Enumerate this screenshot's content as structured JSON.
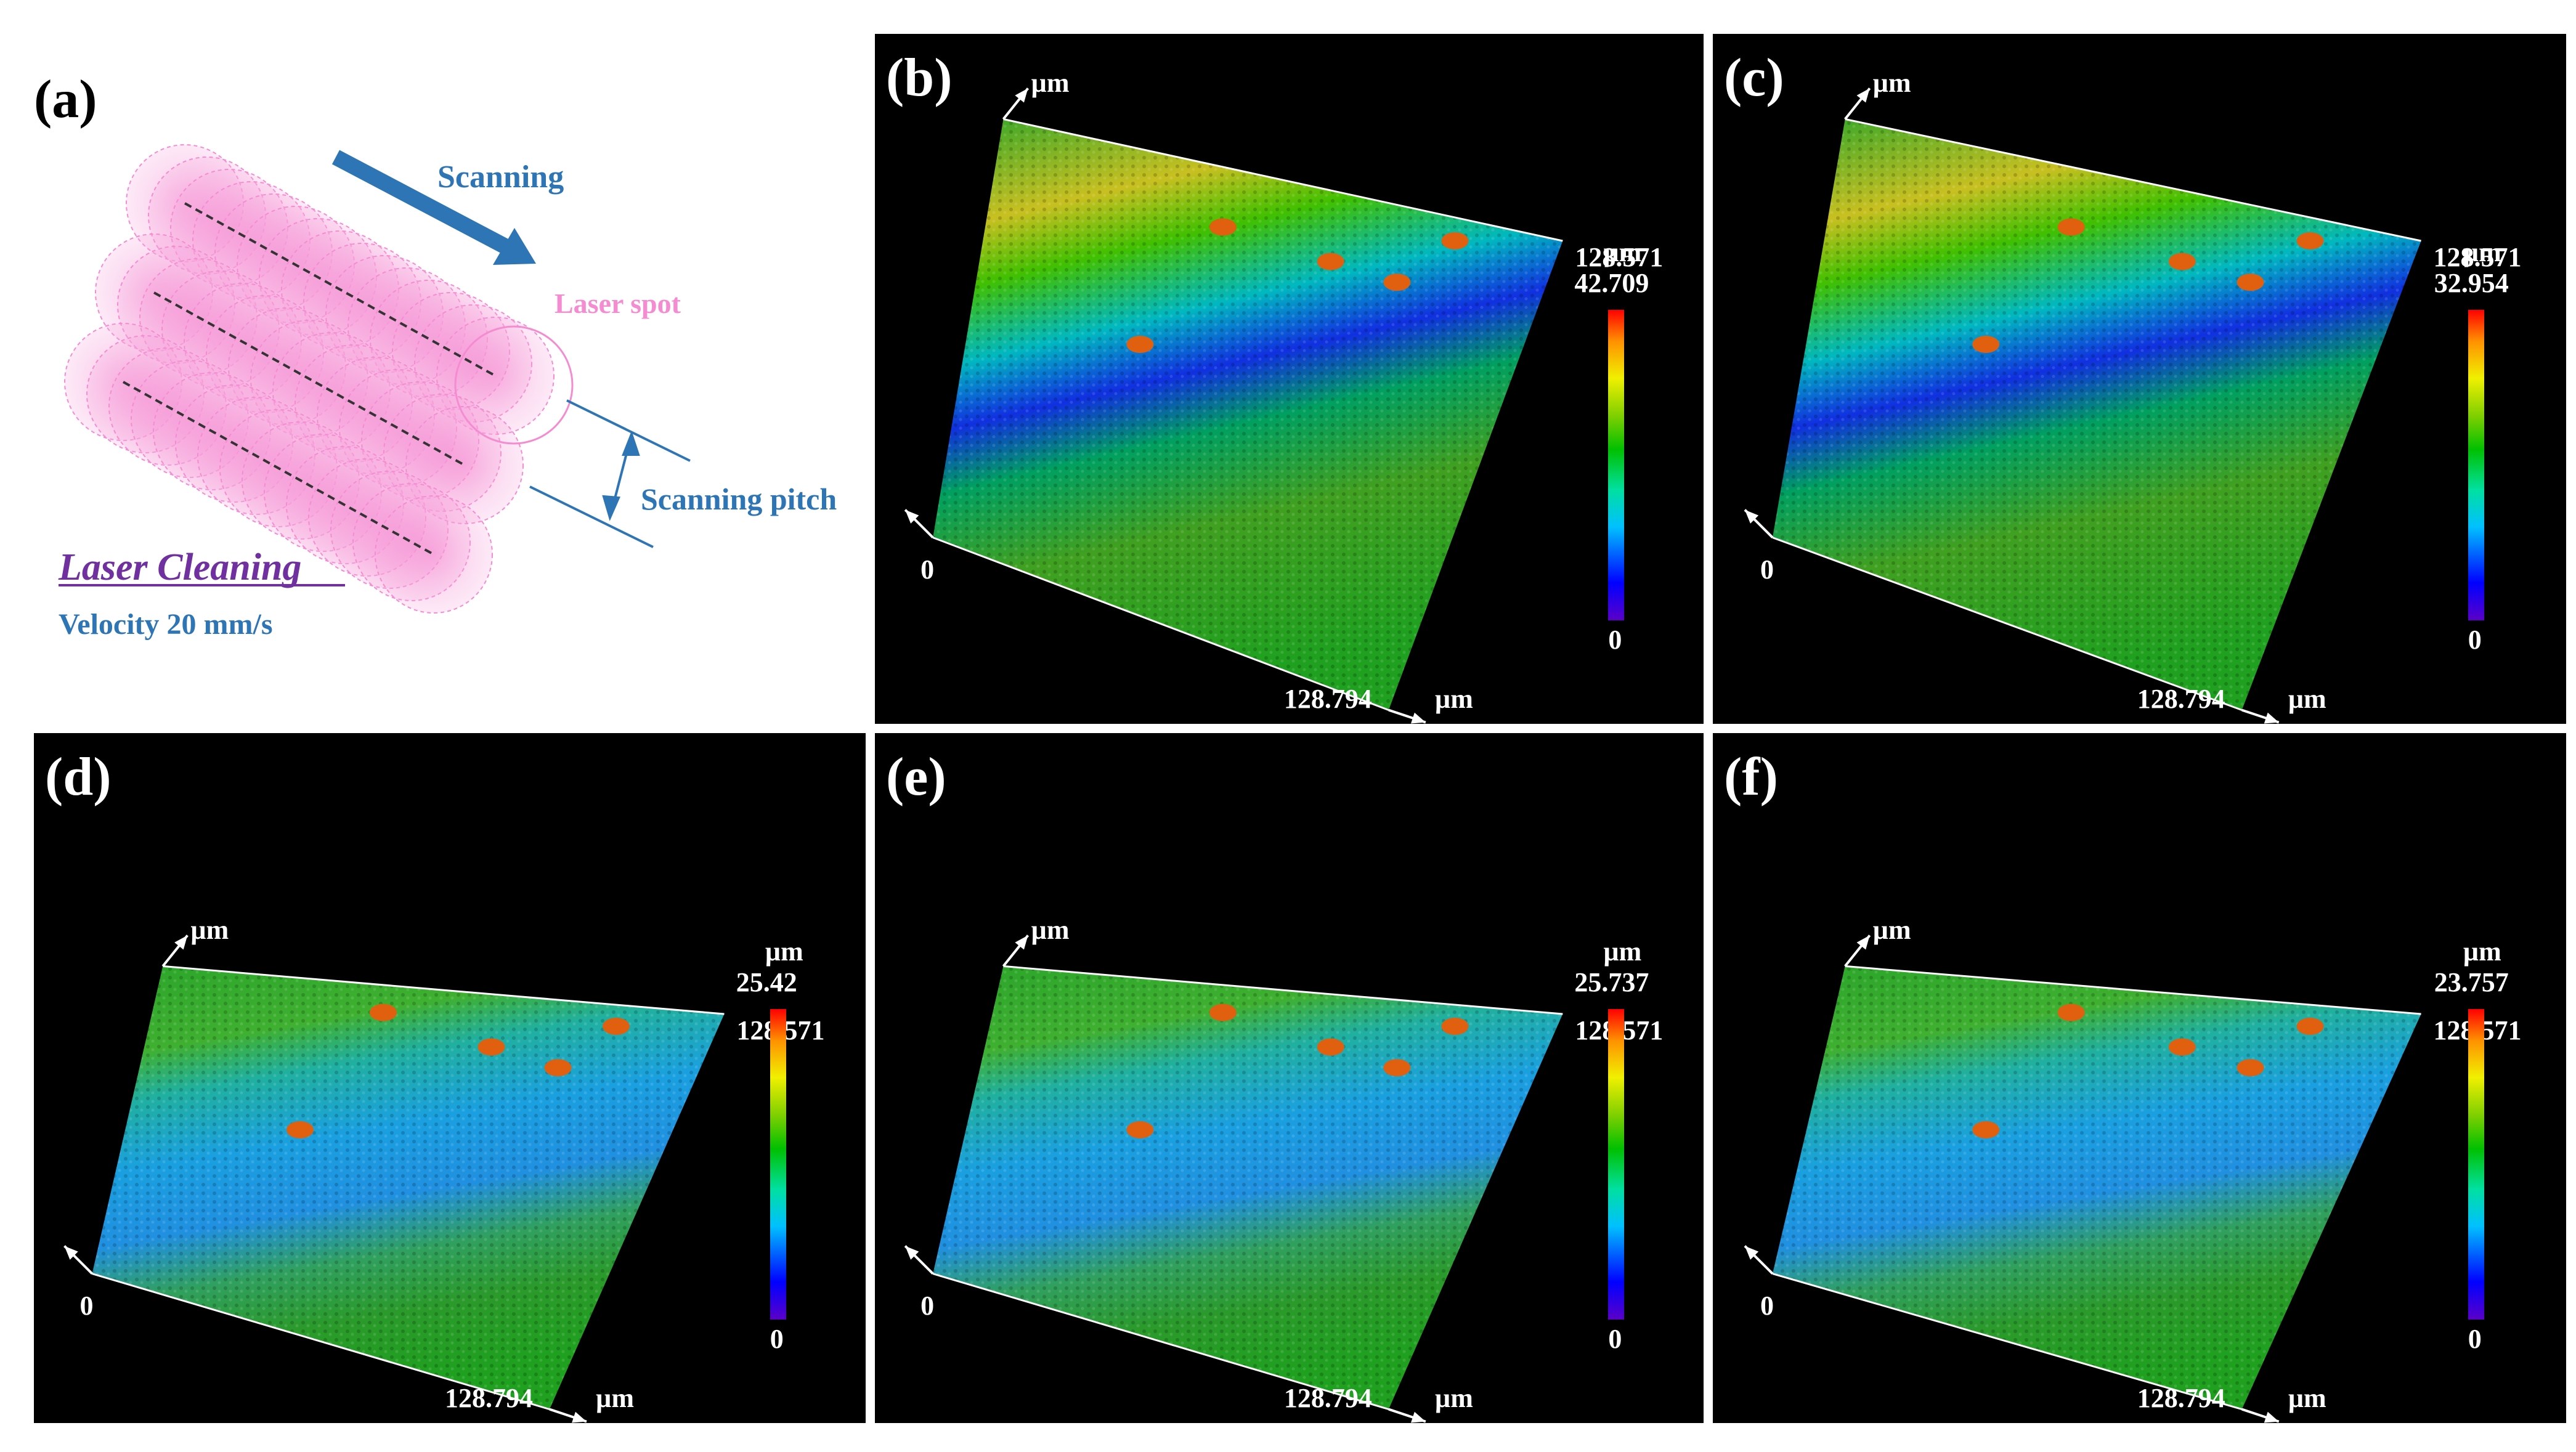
{
  "panel_a": {
    "label": "(a)",
    "scanning": "Scanning",
    "laser_spot": "Laser spot",
    "scanning_pitch": "Scanning pitch",
    "laser_cleaning": "Laser Cleaning",
    "velocity": "Velocity 20 mm/s"
  },
  "colors": {
    "pink": "#f58cd2",
    "blue_text": "#2e75b6",
    "purple": "#7030a0",
    "surface_green": "#1fa01f"
  },
  "axis_common": {
    "unit": "µm",
    "zero": "0",
    "x_max": "128.794",
    "y_max": "128.571",
    "scale_min": "0"
  },
  "panels": [
    {
      "label": "(b)",
      "scale_max": "42.709"
    },
    {
      "label": "(c)",
      "scale_max": "32.954"
    },
    {
      "label": "(d)",
      "scale_max": "25.42"
    },
    {
      "label": "(e)",
      "scale_max": "25.737"
    },
    {
      "label": "(f)",
      "scale_max": "23.757"
    }
  ]
}
